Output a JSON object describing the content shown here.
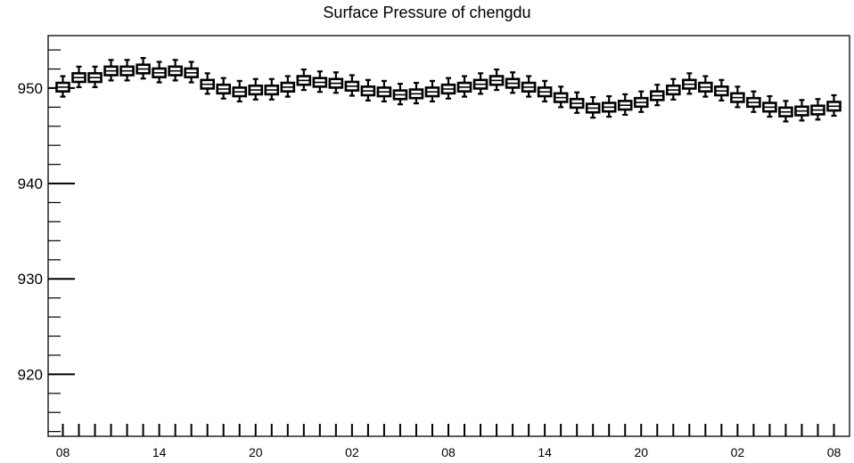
{
  "chart_data": {
    "type": "boxplot",
    "title": "Surface Pressure of chengdu",
    "xlabel": "",
    "ylabel": "",
    "ylim": [
      913.5,
      955.5
    ],
    "yticks": [
      920,
      930,
      940,
      950
    ],
    "y_minor_step": 2,
    "x_tick_labels": [
      "08",
      "14",
      "20",
      "02",
      "08",
      "14",
      "20",
      "02",
      "08"
    ],
    "grid": false,
    "legend": "none",
    "box_color": "#000000",
    "box_fill": "#ffffff",
    "hours": [
      "08",
      "09",
      "10",
      "11",
      "12",
      "13",
      "14",
      "15",
      "16",
      "17",
      "18",
      "19",
      "20",
      "21",
      "22",
      "23",
      "00",
      "01",
      "02",
      "03",
      "04",
      "05",
      "06",
      "07",
      "08",
      "09",
      "10",
      "11",
      "12",
      "13",
      "14",
      "15",
      "16",
      "17",
      "18",
      "19",
      "20",
      "21",
      "22",
      "23",
      "00",
      "01",
      "02",
      "03",
      "04",
      "05",
      "06",
      "07",
      "08"
    ],
    "medians": [
      950.1,
      951.1,
      951.1,
      951.8,
      951.8,
      952.0,
      951.6,
      951.8,
      951.6,
      950.4,
      949.9,
      949.6,
      949.8,
      949.8,
      950.1,
      950.8,
      950.6,
      950.5,
      950.2,
      949.7,
      949.6,
      949.3,
      949.4,
      949.6,
      949.9,
      950.1,
      950.4,
      950.8,
      950.5,
      950.1,
      949.6,
      949.0,
      948.4,
      947.9,
      948.0,
      948.2,
      948.5,
      949.2,
      949.8,
      950.4,
      950.1,
      949.7,
      949.0,
      948.5,
      948.0,
      947.5,
      947.6,
      947.7,
      948.1
    ]
  }
}
